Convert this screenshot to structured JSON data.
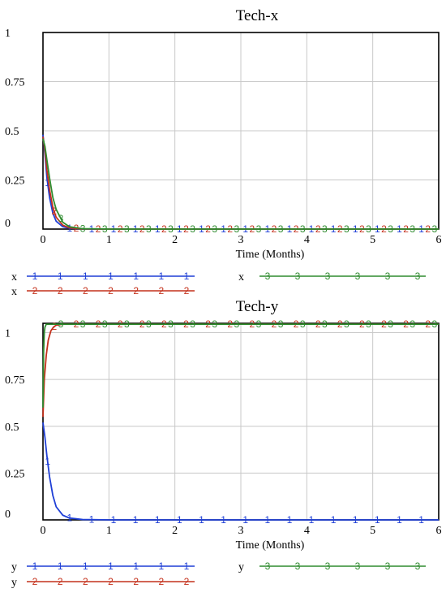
{
  "chart_data": [
    {
      "type": "line",
      "title": "Tech-x",
      "xlabel": "Time  (Months)",
      "ylabel": "",
      "xlim": [
        0,
        6
      ],
      "ylim": [
        0,
        1
      ],
      "xticks": [
        "0",
        "1",
        "2",
        "3",
        "4",
        "5",
        "6"
      ],
      "yticks": [
        "0",
        "0.25",
        "0.5",
        "0.75",
        "1"
      ],
      "grid": true,
      "series": [
        {
          "name": "x",
          "marker": "1",
          "color": "#1f3fd6",
          "x": [
            0,
            0.03,
            0.06,
            0.1,
            0.15,
            0.2,
            0.3,
            0.4,
            0.6,
            1,
            2,
            3,
            4,
            5,
            6
          ],
          "y": [
            0.48,
            0.38,
            0.26,
            0.16,
            0.08,
            0.04,
            0.012,
            0.004,
            0.001,
            0,
            0,
            0,
            0,
            0,
            0
          ]
        },
        {
          "name": "x",
          "marker": "2",
          "color": "#c4311c",
          "x": [
            0,
            0.03,
            0.06,
            0.1,
            0.15,
            0.2,
            0.3,
            0.4,
            0.6,
            1,
            2,
            3,
            4,
            5,
            6
          ],
          "y": [
            0.47,
            0.4,
            0.3,
            0.2,
            0.11,
            0.06,
            0.02,
            0.006,
            0.001,
            0,
            0,
            0,
            0,
            0,
            0
          ]
        },
        {
          "name": "x",
          "marker": "3",
          "color": "#2e8b2e",
          "x": [
            0,
            0.03,
            0.06,
            0.1,
            0.15,
            0.2,
            0.3,
            0.4,
            0.6,
            1,
            2,
            3,
            4,
            5,
            6
          ],
          "y": [
            0.46,
            0.42,
            0.35,
            0.26,
            0.16,
            0.1,
            0.035,
            0.012,
            0.002,
            0,
            0,
            0,
            0,
            0,
            0
          ]
        }
      ]
    },
    {
      "type": "line",
      "title": "Tech-y",
      "xlabel": "Time  (Months)",
      "ylabel": "",
      "xlim": [
        0,
        6
      ],
      "ylim": [
        0,
        1.05
      ],
      "xticks": [
        "0",
        "1",
        "2",
        "3",
        "4",
        "5",
        "6"
      ],
      "yticks": [
        "0",
        "0.25",
        "0.5",
        "0.75",
        "1"
      ],
      "grid": true,
      "series": [
        {
          "name": "y",
          "marker": "1",
          "color": "#1f3fd6",
          "x": [
            0,
            0.03,
            0.06,
            0.1,
            0.15,
            0.2,
            0.3,
            0.4,
            0.6,
            1,
            2,
            3,
            4,
            5,
            6
          ],
          "y": [
            0.52,
            0.44,
            0.34,
            0.23,
            0.13,
            0.07,
            0.025,
            0.01,
            0.002,
            0,
            0,
            0,
            0,
            0,
            0
          ]
        },
        {
          "name": "y",
          "marker": "2",
          "color": "#c4311c",
          "x": [
            0,
            0.02,
            0.05,
            0.08,
            0.12,
            0.16,
            0.2,
            0.3,
            0.5,
            1,
            2,
            3,
            4,
            5,
            6
          ],
          "y": [
            0.55,
            0.75,
            0.88,
            0.96,
            1.01,
            1.03,
            1.04,
            1.045,
            1.045,
            1.045,
            1.045,
            1.045,
            1.045,
            1.045,
            1.045
          ]
        },
        {
          "name": "y",
          "marker": "3",
          "color": "#2e8b2e",
          "x": [
            0,
            0.01,
            0.02,
            0.03,
            0.05,
            0.08,
            0.12,
            0.3,
            1,
            2,
            3,
            4,
            5,
            6
          ],
          "y": [
            0.6,
            0.9,
            1.0,
            1.03,
            1.045,
            1.045,
            1.045,
            1.045,
            1.045,
            1.045,
            1.045,
            1.045,
            1.045,
            1.045
          ]
        }
      ]
    }
  ]
}
